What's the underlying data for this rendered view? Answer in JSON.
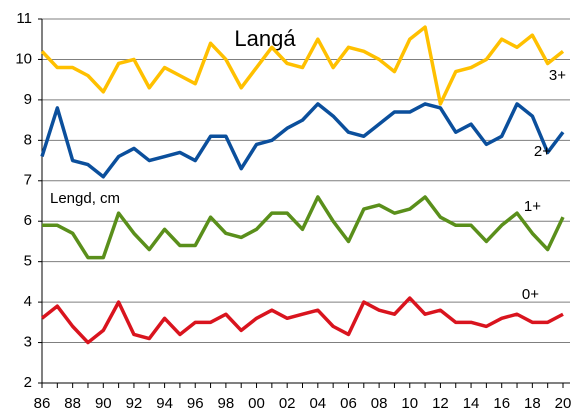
{
  "chart_data": {
    "type": "line",
    "title": "Langá",
    "annotation": "Lengd, cm",
    "categories": [
      "86",
      null,
      "88",
      null,
      "90",
      null,
      "92",
      null,
      "94",
      null,
      "96",
      null,
      "98",
      null,
      "00",
      null,
      "02",
      null,
      "04",
      null,
      "06",
      null,
      "08",
      null,
      "10",
      null,
      "12",
      null,
      "14",
      null,
      "16",
      null,
      "18",
      null,
      "20"
    ],
    "series": [
      {
        "name": "3+",
        "color": "#ffc000",
        "values": [
          10.2,
          9.8,
          9.8,
          9.6,
          9.2,
          9.9,
          10.0,
          9.3,
          9.8,
          9.6,
          9.4,
          10.4,
          10.0,
          9.3,
          9.8,
          10.3,
          9.9,
          9.8,
          10.5,
          9.8,
          10.3,
          10.2,
          10.0,
          9.7,
          10.5,
          10.8,
          8.9,
          9.7,
          9.8,
          10.0,
          10.5,
          10.3,
          10.6,
          9.9,
          10.2
        ]
      },
      {
        "name": "2+",
        "color": "#0b4f9c",
        "values": [
          7.6,
          8.8,
          7.5,
          7.4,
          7.1,
          7.6,
          7.8,
          7.5,
          7.6,
          7.7,
          7.5,
          8.1,
          8.1,
          7.3,
          7.9,
          8.0,
          8.3,
          8.5,
          8.9,
          8.6,
          8.2,
          8.1,
          8.4,
          8.7,
          8.7,
          8.9,
          8.8,
          8.2,
          8.4,
          7.9,
          8.1,
          8.9,
          8.6,
          7.7,
          8.2
        ]
      },
      {
        "name": "1+",
        "color": "#5a8f1b",
        "values": [
          5.9,
          5.9,
          5.7,
          5.1,
          5.1,
          6.2,
          5.7,
          5.3,
          5.8,
          5.4,
          5.4,
          6.1,
          5.7,
          5.6,
          5.8,
          6.2,
          6.2,
          5.8,
          6.6,
          6.0,
          5.5,
          6.3,
          6.4,
          6.2,
          6.3,
          6.6,
          6.1,
          5.9,
          5.9,
          5.5,
          5.9,
          6.2,
          5.7,
          5.3,
          6.1
        ]
      },
      {
        "name": "0+",
        "color": "#d9141e",
        "values": [
          3.6,
          3.9,
          3.4,
          3.0,
          3.3,
          4.0,
          3.2,
          3.1,
          3.6,
          3.2,
          3.5,
          3.5,
          3.7,
          3.3,
          3.6,
          3.8,
          3.6,
          3.7,
          3.8,
          3.4,
          3.2,
          4.0,
          3.8,
          3.7,
          4.1,
          3.7,
          3.8,
          3.5,
          3.5,
          3.4,
          3.6,
          3.7,
          3.5,
          3.5,
          3.7
        ]
      }
    ],
    "ylim": [
      2,
      11
    ],
    "yticks": [
      2,
      3,
      4,
      5,
      6,
      7,
      8,
      9,
      10,
      11
    ],
    "grid": true
  }
}
